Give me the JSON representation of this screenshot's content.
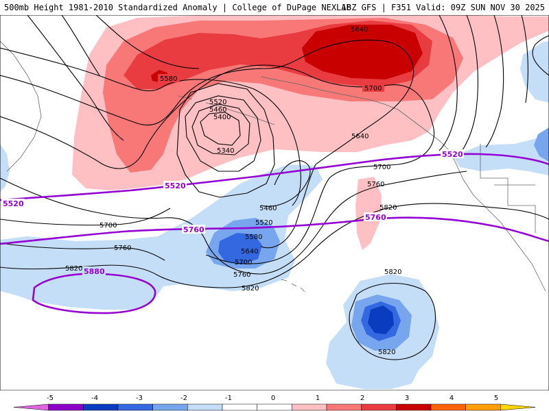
{
  "header": {
    "title_left": "500mb Height 1981-2010 Standardized Anomaly | College of DuPage NEXLAB",
    "title_right": "18Z GFS | F351 Valid: 09Z SUN NOV 30 2025"
  },
  "colors": {
    "anom_pos_1": "#ffc0c4",
    "anom_pos_2": "#f87878",
    "anom_pos_3": "#e83c40",
    "anom_pos_4": "#c80000",
    "anom_neg_1": "#c4def8",
    "anom_neg_2": "#78a6ee",
    "anom_neg_3": "#3468e0",
    "anom_neg_4": "#0a3cc0",
    "contour": "#000000",
    "purple_contour": "#9400d3",
    "coastline": "#666666"
  },
  "contour_labels": {
    "c5640_top": "5640",
    "c5700_top": "5700",
    "c5580_left": "5580",
    "c5520": "5520",
    "c5460": "5460",
    "c5400": "5400",
    "c5340": "5340",
    "c5640_mid": "5640",
    "c5700_mid": "5700",
    "c5760_mid": "5760",
    "c5820_mid": "5820",
    "c5700_left": "5700",
    "c5760_left": "5760",
    "c5820_left": "5820",
    "low_5460": "5460",
    "low_5520": "5520",
    "low_5580": "5580",
    "low_5640": "5640",
    "low_5700": "5700",
    "low_5760": "5760",
    "low_5820": "5820",
    "sub_5820_top": "5820",
    "sub_5820_bot": "5820"
  },
  "purple_labels": {
    "p5520_left": "5520",
    "p5520_mid": "5520",
    "p5520_right": "5520",
    "p5760_mid": "5760",
    "p5760_right": "5760",
    "p5880": "5880"
  },
  "legend": {
    "ticks": [
      "-5",
      "-4",
      "-3",
      "-2",
      "-1",
      "0",
      "1",
      "2",
      "3",
      "4",
      "5"
    ],
    "colors": [
      "#e066e0",
      "#8a00c8",
      "#0a3cc0",
      "#3468e0",
      "#78a6ee",
      "#c4def8",
      "#ffffff",
      "#ffffff",
      "#ffc0c4",
      "#f87878",
      "#e83c40",
      "#c80000",
      "#ff6400",
      "#ffa000",
      "#ffd700"
    ]
  }
}
